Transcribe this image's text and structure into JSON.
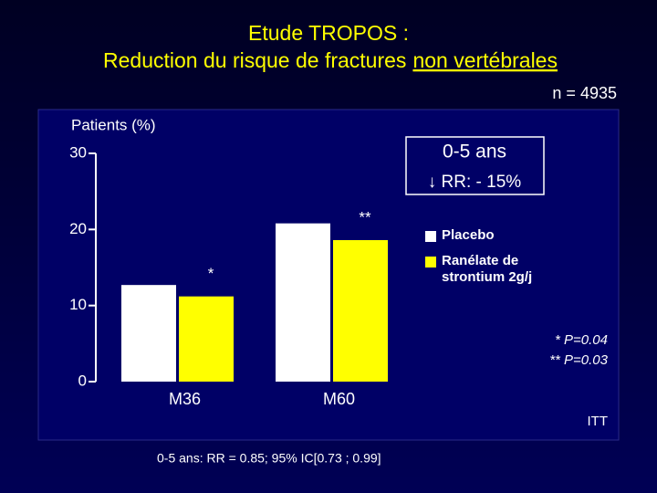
{
  "header": {
    "title_line1": "Etude TROPOS :",
    "title_line2": "Reduction du risque de fractures",
    "title_line2_underlined": "non vertébrales",
    "sample_size": "n = 4935"
  },
  "chart_data": {
    "type": "bar",
    "y_label": "Patients (%)",
    "categories": [
      "M36",
      "M60"
    ],
    "series": [
      {
        "name": "Placebo",
        "color": "#ffffff",
        "values": [
          12.7,
          20.8
        ]
      },
      {
        "name": "Ranélate de strontium 2g/j",
        "color": "#ffff00",
        "values": [
          11.2,
          18.6
        ],
        "significance": [
          "*",
          "**"
        ]
      }
    ],
    "ylim": [
      0,
      30
    ],
    "yticks": [
      0,
      10,
      20,
      30
    ],
    "box": {
      "line1": "0-5 ans",
      "line2": "↓ RR: - 15%"
    },
    "notes": [
      "* P=0.04",
      "** P=0.03"
    ],
    "population": "ITT"
  },
  "footnote": "0-5 ans: RR = 0.85; 95% IC[0.73 ; 0.99]"
}
